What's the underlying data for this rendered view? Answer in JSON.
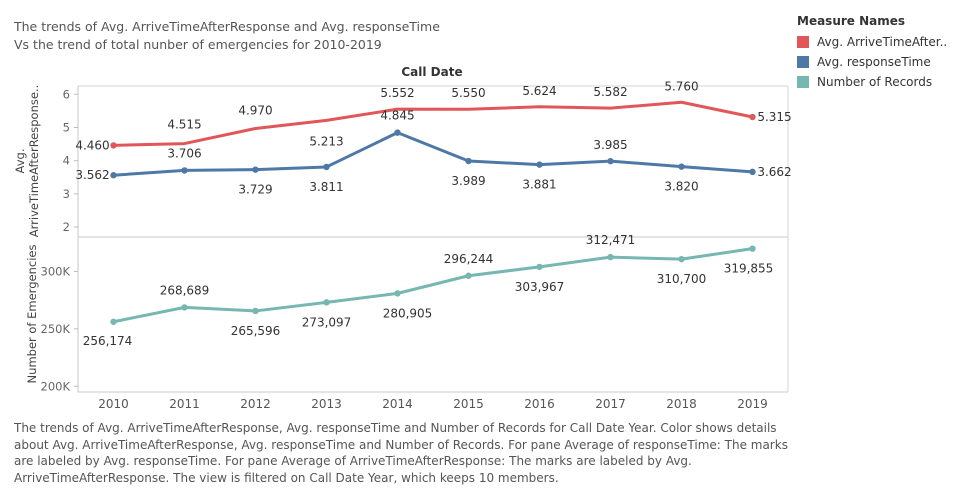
{
  "title_lines": [
    "The trends of Avg. ArriveTimeAfterResponse and Avg. responseTime",
    "Vs the trend of total nunber of emergencies for 2010-2019"
  ],
  "header_label": "Call Date",
  "legend": {
    "title": "Measure Names",
    "items": [
      {
        "label": "Avg. ArriveTimeAfter..",
        "color": "#e15759"
      },
      {
        "label": "Avg. responseTime",
        "color": "#4e79a7"
      },
      {
        "label": "Number of Records",
        "color": "#76b7b2"
      }
    ]
  },
  "caption": "The trends of Avg. ArriveTimeAfterResponse, Avg. responseTime and Number of Records for Call Date Year.  Color shows details about Avg. ArriveTimeAfterResponse, Avg. responseTime and Number of Records.  For pane Average of responseTime:  The marks are labeled by Avg. responseTime.  For pane Average of ArriveTimeAfterResponse:  The marks are labeled by Avg. ArriveTimeAfterResponse. The view is filtered on Call Date Year, which keeps 10 members.",
  "chart_data": [
    {
      "type": "line",
      "x": [
        "2010",
        "2011",
        "2012",
        "2013",
        "2014",
        "2015",
        "2016",
        "2017",
        "2018",
        "2019"
      ],
      "ylabel": "Avg. ArriveTimeAfterResponse..",
      "yticks": [
        2,
        3,
        4,
        5,
        6
      ],
      "ylim": [
        1.7,
        6.25
      ],
      "grid": false,
      "series": [
        {
          "name": "Avg. ArriveTimeAfter..",
          "color": "#e15759",
          "values": [
            4.46,
            4.515,
            4.97,
            5.213,
            5.552,
            5.55,
            5.624,
            5.582,
            5.76,
            5.315
          ],
          "labels": [
            "4.460",
            "4.515",
            "4.970",
            "5.213",
            "5.552",
            "5.550",
            "5.624",
            "5.582",
            "5.760",
            "5.315"
          ],
          "markers": [
            true,
            false,
            false,
            false,
            false,
            false,
            false,
            false,
            false,
            true
          ]
        },
        {
          "name": "Avg. responseTime",
          "color": "#4e79a7",
          "values": [
            3.562,
            3.706,
            3.729,
            3.811,
            4.845,
            3.989,
            3.881,
            3.985,
            3.82,
            3.662
          ],
          "labels": [
            "3.562",
            "3.706",
            "3.729",
            "3.811",
            "4.845",
            "3.989",
            "3.881",
            "3.985",
            "3.820",
            "3.662"
          ],
          "markers": [
            true,
            true,
            true,
            true,
            true,
            true,
            true,
            true,
            true,
            true
          ]
        }
      ]
    },
    {
      "type": "line",
      "x": [
        "2010",
        "2011",
        "2012",
        "2013",
        "2014",
        "2015",
        "2016",
        "2017",
        "2018",
        "2019"
      ],
      "ylabel": "Number of Emergencies",
      "yticks": [
        200000,
        250000,
        300000
      ],
      "yticklabels": [
        "200K",
        "250K",
        "300K"
      ],
      "ylim": [
        195000,
        330000
      ],
      "grid": false,
      "series": [
        {
          "name": "Number of Records",
          "color": "#76b7b2",
          "values": [
            256174,
            268689,
            265596,
            273097,
            280905,
            296244,
            303967,
            312471,
            310700,
            319855
          ],
          "labels": [
            "256,174",
            "268,689",
            "265,596",
            "273,097",
            "280,905",
            "296,244",
            "303,967",
            "312,471",
            "310,700",
            "319,855"
          ],
          "markers": [
            true,
            true,
            true,
            true,
            true,
            true,
            true,
            true,
            true,
            true
          ]
        }
      ]
    }
  ]
}
